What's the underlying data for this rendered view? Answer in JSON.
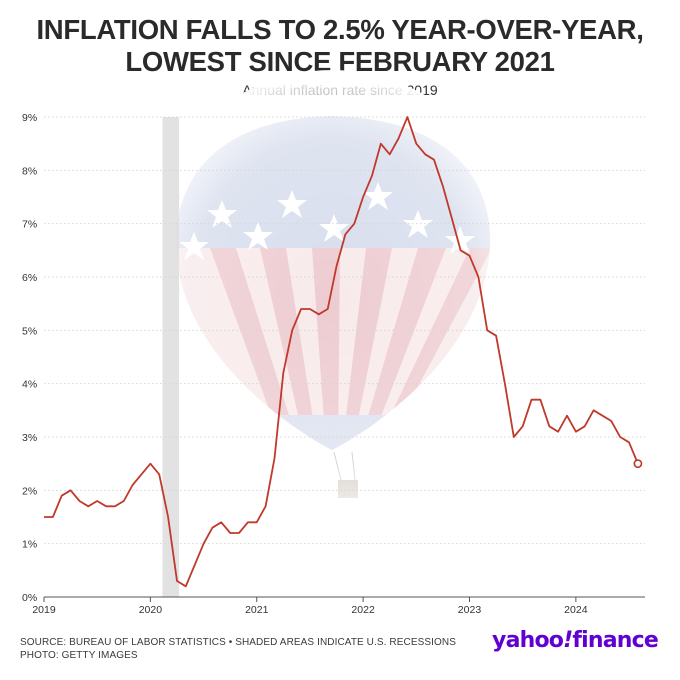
{
  "title_lines": [
    "INFLATION FALLS TO 2.5% YEAR-OVER-YEAR,",
    "LOWEST SINCE FEBRUARY 2021"
  ],
  "subtitle": "Annual inflation rate since 2019",
  "footer": {
    "source": "SOURCE: BUREAU OF LABOR STATISTICS • SHADED AREAS INDICATE U.S. RECESSIONS",
    "photo": "PHOTO: GETTY IMAGES"
  },
  "logo": {
    "word": "yahoo",
    "bang": "!",
    "product": "finance"
  },
  "colors": {
    "line": "#c0392b",
    "recession": "#dddddd",
    "grid": "#d6d6d6",
    "logo": "#6001d2"
  },
  "chart_data": {
    "type": "line",
    "title": "Annual inflation rate since 2019",
    "xlabel": "",
    "ylabel": "",
    "xlim": [
      2019.0,
      2024.65
    ],
    "ylim": [
      0,
      9
    ],
    "yticks": [
      "0%",
      "1%",
      "2%",
      "3%",
      "4%",
      "5%",
      "6%",
      "7%",
      "8%",
      "9%"
    ],
    "xticks": [
      "2019",
      "2020",
      "2021",
      "2022",
      "2023",
      "2024"
    ],
    "grid": "horizontal dotted",
    "recessions": [
      {
        "start": "2020-02",
        "end": "2020-04"
      }
    ],
    "series": [
      {
        "x": [
          "2019-01",
          "2019-02",
          "2019-03",
          "2019-04",
          "2019-05",
          "2019-06",
          "2019-07",
          "2019-08",
          "2019-09",
          "2019-10",
          "2019-11",
          "2019-12",
          "2020-01",
          "2020-02",
          "2020-03",
          "2020-04",
          "2020-05",
          "2020-06",
          "2020-07",
          "2020-08",
          "2020-09",
          "2020-10",
          "2020-11",
          "2020-12",
          "2021-01",
          "2021-02",
          "2021-03",
          "2021-04",
          "2021-05",
          "2021-06",
          "2021-07",
          "2021-08",
          "2021-09",
          "2021-10",
          "2021-11",
          "2021-12",
          "2022-01",
          "2022-02",
          "2022-03",
          "2022-04",
          "2022-05",
          "2022-06",
          "2022-07",
          "2022-08",
          "2022-09",
          "2022-10",
          "2022-11",
          "2022-12",
          "2023-01",
          "2023-02",
          "2023-03",
          "2023-04",
          "2023-05",
          "2023-06",
          "2023-07",
          "2023-08",
          "2023-09",
          "2023-10",
          "2023-11",
          "2023-12",
          "2024-01",
          "2024-02",
          "2024-03",
          "2024-04",
          "2024-05",
          "2024-06",
          "2024-07",
          "2024-08"
        ],
        "values": [
          1.5,
          1.5,
          1.9,
          2.0,
          1.8,
          1.7,
          1.8,
          1.7,
          1.7,
          1.8,
          2.1,
          2.3,
          2.5,
          2.3,
          1.5,
          0.3,
          0.2,
          0.6,
          1.0,
          1.3,
          1.4,
          1.2,
          1.2,
          1.4,
          1.4,
          1.7,
          2.6,
          4.2,
          5.0,
          5.4,
          5.4,
          5.3,
          5.4,
          6.2,
          6.8,
          7.0,
          7.5,
          7.9,
          8.5,
          8.3,
          8.6,
          9.0,
          8.5,
          8.3,
          8.2,
          7.7,
          7.1,
          6.5,
          6.4,
          6.0,
          5.0,
          4.9,
          4.0,
          3.0,
          3.2,
          3.7,
          3.7,
          3.2,
          3.1,
          3.4,
          3.1,
          3.2,
          3.5,
          3.4,
          3.3,
          3.0,
          2.9,
          2.5
        ]
      }
    ]
  }
}
